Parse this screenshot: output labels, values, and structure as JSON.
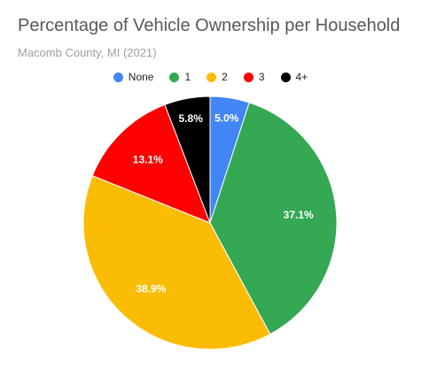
{
  "chart_data": {
    "type": "pie",
    "title": "Percentage of Vehicle Ownership per Household",
    "subtitle": "Macomb County, MI (2021)",
    "legend_position": "top-center",
    "slices": [
      {
        "name": "None",
        "value": 5.0,
        "label": "5.0%",
        "color": "#4285f4"
      },
      {
        "name": "1",
        "value": 37.1,
        "label": "37.1%",
        "color": "#34a853"
      },
      {
        "name": "2",
        "value": 38.9,
        "label": "38.9%",
        "color": "#fbbc04"
      },
      {
        "name": "3",
        "value": 13.1,
        "label": "13.1%",
        "color": "#ff0000"
      },
      {
        "name": "4+",
        "value": 5.8,
        "label": "5.8%",
        "color": "#000000"
      }
    ]
  }
}
